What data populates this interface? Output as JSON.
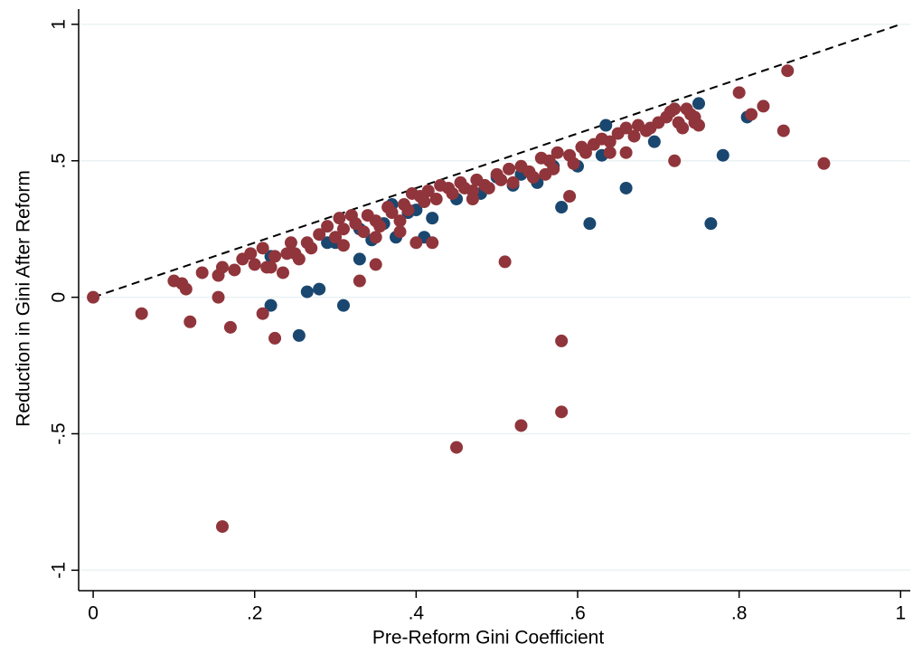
{
  "chart_data": {
    "type": "scatter",
    "xlabel": "Pre-Reform Gini Coefficient",
    "ylabel": "Reduction in Gini After Reform",
    "xlim": [
      -0.018,
      1.012
    ],
    "ylim": [
      -1.075,
      1.056
    ],
    "xticks": [
      0,
      {
        "value": 0.2,
        "label": ".2"
      },
      {
        "value": 0.4,
        "label": ".4"
      },
      {
        "value": 0.6,
        "label": ".6"
      },
      {
        "value": 0.8,
        "label": ".8"
      },
      1
    ],
    "yticks": [
      -1,
      {
        "value": -0.5,
        "label": "-.5"
      },
      0,
      {
        "value": 0.5,
        "label": ".5"
      },
      1
    ],
    "grid": true,
    "series": [
      {
        "color": "#1a476f",
        "x": [
          0.22,
          0.22,
          0.255,
          0.265,
          0.28,
          0.31,
          0.33,
          0.345,
          0.375,
          0.41,
          0.42,
          0.3,
          0.36,
          0.39,
          0.55,
          0.58,
          0.6,
          0.615,
          0.63,
          0.635,
          0.66,
          0.695,
          0.75,
          0.765,
          0.78,
          0.81,
          0.52,
          0.48,
          0.5,
          0.57,
          0.45,
          0.33,
          0.29,
          0.37,
          0.4,
          0.53
        ],
        "y": [
          0.15,
          -0.03,
          -0.14,
          0.02,
          0.03,
          -0.03,
          0.14,
          0.21,
          0.22,
          0.22,
          0.29,
          0.2,
          0.27,
          0.31,
          0.42,
          0.33,
          0.48,
          0.27,
          0.52,
          0.63,
          0.4,
          0.57,
          0.71,
          0.27,
          0.52,
          0.66,
          0.41,
          0.38,
          0.44,
          0.48,
          0.36,
          0.25,
          0.2,
          0.34,
          0.32,
          0.45
        ]
      },
      {
        "color": "#90353b",
        "x": [
          0,
          0.06,
          0.12,
          0.17,
          0.16,
          0.21,
          0.225,
          0.45,
          0.53,
          0.58,
          0.58,
          0.51,
          0.155,
          0.33,
          0.35,
          0.42,
          0.4,
          0.59,
          0.72,
          0.66,
          0.855,
          0.905,
          0.86,
          0.8,
          0.815,
          0.83,
          0.72,
          0.74,
          0.75,
          0.1,
          0.11,
          0.115,
          0.135,
          0.155,
          0.16,
          0.175,
          0.185,
          0.195,
          0.2,
          0.21,
          0.215,
          0.225,
          0.235,
          0.245,
          0.25,
          0.255,
          0.265,
          0.27,
          0.28,
          0.29,
          0.3,
          0.305,
          0.31,
          0.32,
          0.325,
          0.335,
          0.34,
          0.35,
          0.355,
          0.365,
          0.37,
          0.38,
          0.385,
          0.39,
          0.395,
          0.405,
          0.41,
          0.415,
          0.425,
          0.43,
          0.44,
          0.445,
          0.455,
          0.46,
          0.47,
          0.475,
          0.485,
          0.49,
          0.5,
          0.505,
          0.515,
          0.52,
          0.53,
          0.54,
          0.545,
          0.555,
          0.565,
          0.57,
          0.575,
          0.59,
          0.595,
          0.605,
          0.61,
          0.62,
          0.63,
          0.64,
          0.65,
          0.66,
          0.67,
          0.675,
          0.685,
          0.69,
          0.7,
          0.71,
          0.715,
          0.725,
          0.73,
          0.745,
          0.735,
          0.745,
          0.22,
          0.24,
          0.31,
          0.35,
          0.38,
          0.47,
          0.56,
          0.64
        ],
        "y": [
          0,
          -0.06,
          -0.09,
          -0.11,
          -0.84,
          -0.06,
          -0.15,
          -0.55,
          -0.47,
          -0.42,
          -0.16,
          0.13,
          0.0,
          0.06,
          0.12,
          0.2,
          0.2,
          0.37,
          0.5,
          0.53,
          0.61,
          0.49,
          0.83,
          0.75,
          0.67,
          0.7,
          0.69,
          0.67,
          0.63,
          0.06,
          0.05,
          0.03,
          0.09,
          0.08,
          0.11,
          0.1,
          0.14,
          0.16,
          0.12,
          0.18,
          0.11,
          0.15,
          0.09,
          0.2,
          0.16,
          0.14,
          0.2,
          0.18,
          0.23,
          0.26,
          0.22,
          0.29,
          0.25,
          0.3,
          0.27,
          0.24,
          0.3,
          0.28,
          0.26,
          0.33,
          0.31,
          0.28,
          0.34,
          0.32,
          0.38,
          0.37,
          0.35,
          0.39,
          0.36,
          0.41,
          0.4,
          0.38,
          0.42,
          0.4,
          0.39,
          0.43,
          0.41,
          0.4,
          0.45,
          0.43,
          0.47,
          0.42,
          0.48,
          0.46,
          0.44,
          0.51,
          0.5,
          0.47,
          0.53,
          0.52,
          0.49,
          0.55,
          0.53,
          0.56,
          0.58,
          0.57,
          0.6,
          0.62,
          0.59,
          0.63,
          0.61,
          0.62,
          0.64,
          0.66,
          0.68,
          0.64,
          0.62,
          0.66,
          0.69,
          0.64,
          0.11,
          0.16,
          0.19,
          0.22,
          0.24,
          0.36,
          0.45,
          0.53
        ]
      }
    ]
  }
}
